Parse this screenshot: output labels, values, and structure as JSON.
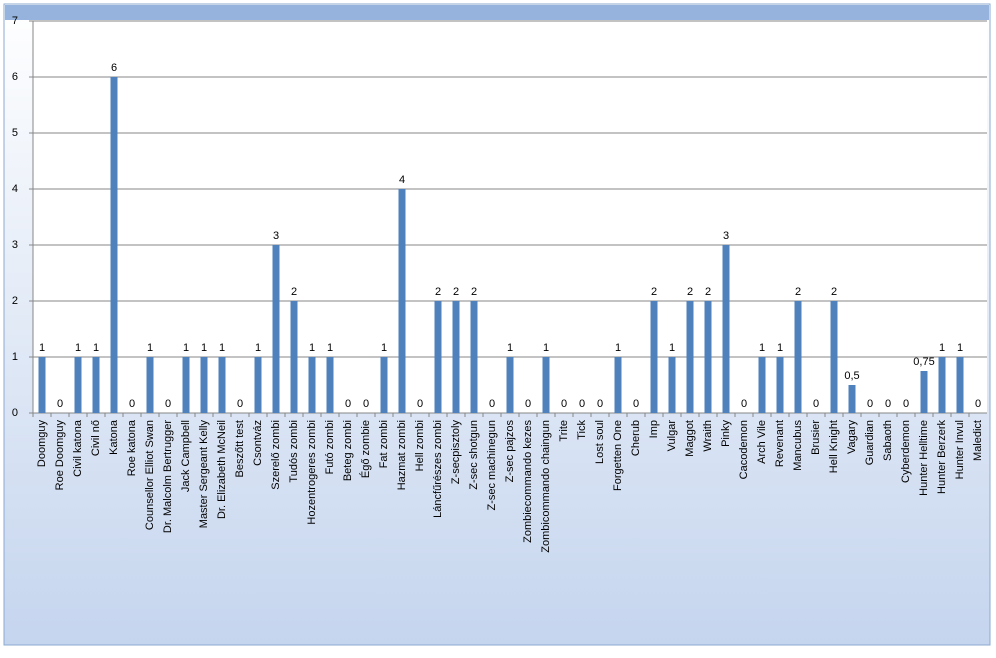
{
  "chart_data": {
    "type": "bar",
    "categories": [
      "Doomguy",
      "Roe Doomguy",
      "Civil katona",
      "Civil nő",
      "Katona",
      "Roe katona",
      "Counsellor Elliot Swan",
      "Dr. Malcolm Bertrugger",
      "Jack Campbell",
      "Master Sergeant Kelly",
      "Dr. Elizabeth McNeil",
      "Beszőtt test",
      "Csontváz",
      "Szerelő zombi",
      "Tudós zombi",
      "Hozentrogeres zombi",
      "Futó zombi",
      "Beteg zombi",
      "Égő zombie",
      "Fat zombi",
      "Hazmat zombi",
      "Hell zombi",
      "Láncfűrészes zombi",
      "Z-secpisztoly",
      "Z-sec shotgun",
      "Z-sec machinegun",
      "Z-sec pajzos",
      "Zombiecommando kezes",
      "Zombicommando chaingun",
      "Trite",
      "Tick",
      "Lost soul",
      "Forgetten One",
      "Cherub",
      "Imp",
      "Vulgar",
      "Maggot",
      "Wraith",
      "Pinky",
      "Cacodemon",
      "Arch Vile",
      "Revenant",
      "Mancubus",
      "Brusier",
      "Hell Knight",
      "Vagary",
      "Guardian",
      "Sabaoth",
      "Cyberdemon",
      "Hunter Helltime",
      "Hunter Berzerk",
      "Hunter Invul",
      "Maledict"
    ],
    "values": [
      1,
      0,
      1,
      1,
      6,
      0,
      1,
      0,
      1,
      1,
      1,
      0,
      1,
      3,
      2,
      1,
      1,
      0,
      0,
      1,
      4,
      0,
      2,
      2,
      2,
      0,
      1,
      0,
      1,
      0,
      0,
      0,
      1,
      0,
      2,
      1,
      2,
      2,
      3,
      0,
      1,
      1,
      2,
      0,
      2,
      0.5,
      0,
      0,
      0,
      0.75,
      1,
      1,
      0
    ],
    "value_labels": [
      "1",
      "0",
      "1",
      "1",
      "6",
      "0",
      "1",
      "0",
      "1",
      "1",
      "1",
      "0",
      "1",
      "3",
      "2",
      "1",
      "1",
      "0",
      "0",
      "1",
      "4",
      "0",
      "2",
      "2",
      "2",
      "0",
      "1",
      "0",
      "1",
      "0",
      "0",
      "0",
      "1",
      "0",
      "2",
      "1",
      "2",
      "2",
      "3",
      "0",
      "1",
      "1",
      "2",
      "0",
      "2",
      "0,5",
      "0",
      "0",
      "0",
      "0,75",
      "1",
      "1",
      "0"
    ],
    "color": "#4f81bd",
    "ylim": [
      0,
      7
    ],
    "yticks": [
      0,
      1,
      2,
      3,
      4,
      5,
      6,
      7
    ],
    "grid": true
  }
}
